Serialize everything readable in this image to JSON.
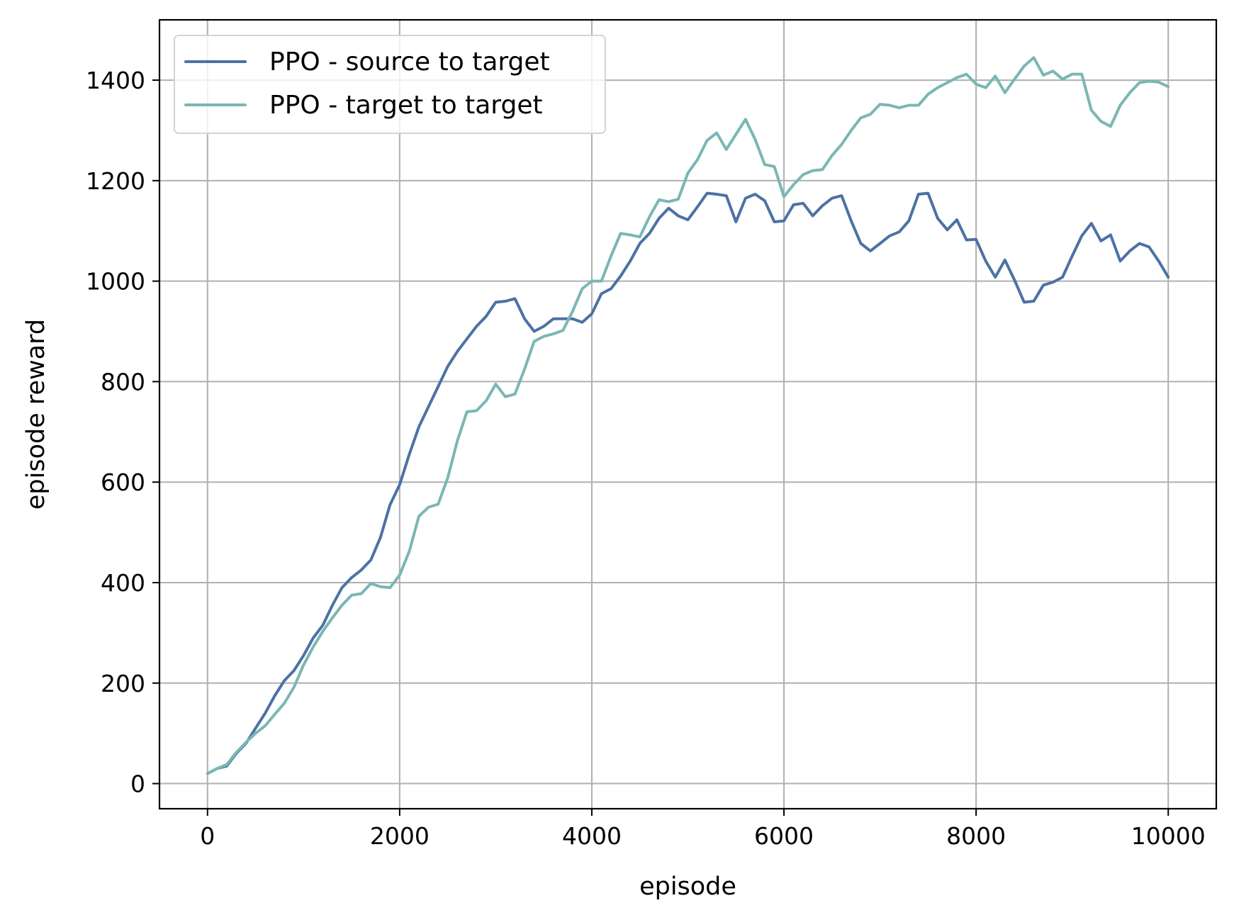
{
  "chart_data": {
    "type": "line",
    "title": "",
    "xlabel": "episode",
    "ylabel": "episode reward",
    "xlim": [
      -500,
      10500
    ],
    "ylim": [
      -50,
      1520
    ],
    "xticks": [
      0,
      2000,
      4000,
      6000,
      8000,
      10000
    ],
    "xtick_labels": [
      "0",
      "2000",
      "4000",
      "6000",
      "8000",
      "10000"
    ],
    "yticks": [
      0,
      200,
      400,
      600,
      800,
      1000,
      1200,
      1400
    ],
    "ytick_labels": [
      "0",
      "200",
      "400",
      "600",
      "800",
      "1000",
      "1200",
      "1400"
    ],
    "grid": true,
    "legend_position": "top-left",
    "x": [
      0,
      100,
      200,
      300,
      400,
      500,
      600,
      700,
      800,
      900,
      1000,
      1100,
      1200,
      1300,
      1400,
      1500,
      1600,
      1700,
      1800,
      1900,
      2000,
      2100,
      2200,
      2300,
      2400,
      2500,
      2600,
      2700,
      2800,
      2900,
      3000,
      3100,
      3200,
      3300,
      3400,
      3500,
      3600,
      3700,
      3800,
      3900,
      4000,
      4100,
      4200,
      4300,
      4400,
      4500,
      4600,
      4700,
      4800,
      4900,
      5000,
      5100,
      5200,
      5300,
      5400,
      5500,
      5600,
      5700,
      5800,
      5900,
      6000,
      6100,
      6200,
      6300,
      6400,
      6500,
      6600,
      6700,
      6800,
      6900,
      7000,
      7100,
      7200,
      7300,
      7400,
      7500,
      7600,
      7700,
      7800,
      7900,
      8000,
      8100,
      8200,
      8300,
      8400,
      8500,
      8600,
      8700,
      8800,
      8900,
      9000,
      9100,
      9200,
      9300,
      9400,
      9500,
      9600,
      9700,
      9800,
      9900,
      10000
    ],
    "series": [
      {
        "name": "PPO - source to target",
        "color": "#4c72a4",
        "values": [
          20,
          30,
          35,
          60,
          80,
          110,
          140,
          175,
          205,
          225,
          255,
          290,
          315,
          355,
          390,
          410,
          425,
          445,
          490,
          555,
          595,
          655,
          710,
          750,
          790,
          830,
          860,
          885,
          910,
          930,
          958,
          960,
          965,
          925,
          900,
          910,
          925,
          925,
          925,
          918,
          935,
          975,
          985,
          1010,
          1040,
          1075,
          1095,
          1125,
          1145,
          1130,
          1122,
          1148,
          1175,
          1173,
          1170,
          1118,
          1165,
          1173,
          1160,
          1118,
          1120,
          1152,
          1155,
          1130,
          1150,
          1165,
          1170,
          1120,
          1075,
          1060,
          1075,
          1090,
          1098,
          1120,
          1173,
          1175,
          1125,
          1102,
          1122,
          1082,
          1083,
          1040,
          1008,
          1042,
          1002,
          958,
          960,
          992,
          998,
          1008,
          1050,
          1090,
          1115,
          1080,
          1092,
          1040,
          1060,
          1075,
          1068,
          1040,
          1008
        ]
      },
      {
        "name": "PPO - target to target",
        "color": "#79b7b4",
        "values": [
          20,
          30,
          38,
          62,
          82,
          100,
          115,
          138,
          160,
          192,
          236,
          272,
          303,
          330,
          355,
          375,
          378,
          398,
          392,
          390,
          415,
          462,
          532,
          550,
          556,
          608,
          682,
          740,
          742,
          762,
          795,
          770,
          775,
          825,
          880,
          890,
          895,
          902,
          940,
          985,
          1000,
          1000,
          1050,
          1095,
          1092,
          1088,
          1128,
          1162,
          1158,
          1163,
          1215,
          1242,
          1280,
          1295,
          1262,
          1292,
          1322,
          1282,
          1232,
          1228,
          1168,
          1192,
          1212,
          1220,
          1222,
          1250,
          1272,
          1300,
          1325,
          1332,
          1352,
          1350,
          1345,
          1350,
          1350,
          1372,
          1385,
          1395,
          1405,
          1412,
          1392,
          1385,
          1408,
          1375,
          1402,
          1428,
          1445,
          1410,
          1418,
          1402,
          1412,
          1412,
          1340,
          1318,
          1308,
          1350,
          1375,
          1395,
          1398,
          1396,
          1387
        ]
      }
    ]
  }
}
